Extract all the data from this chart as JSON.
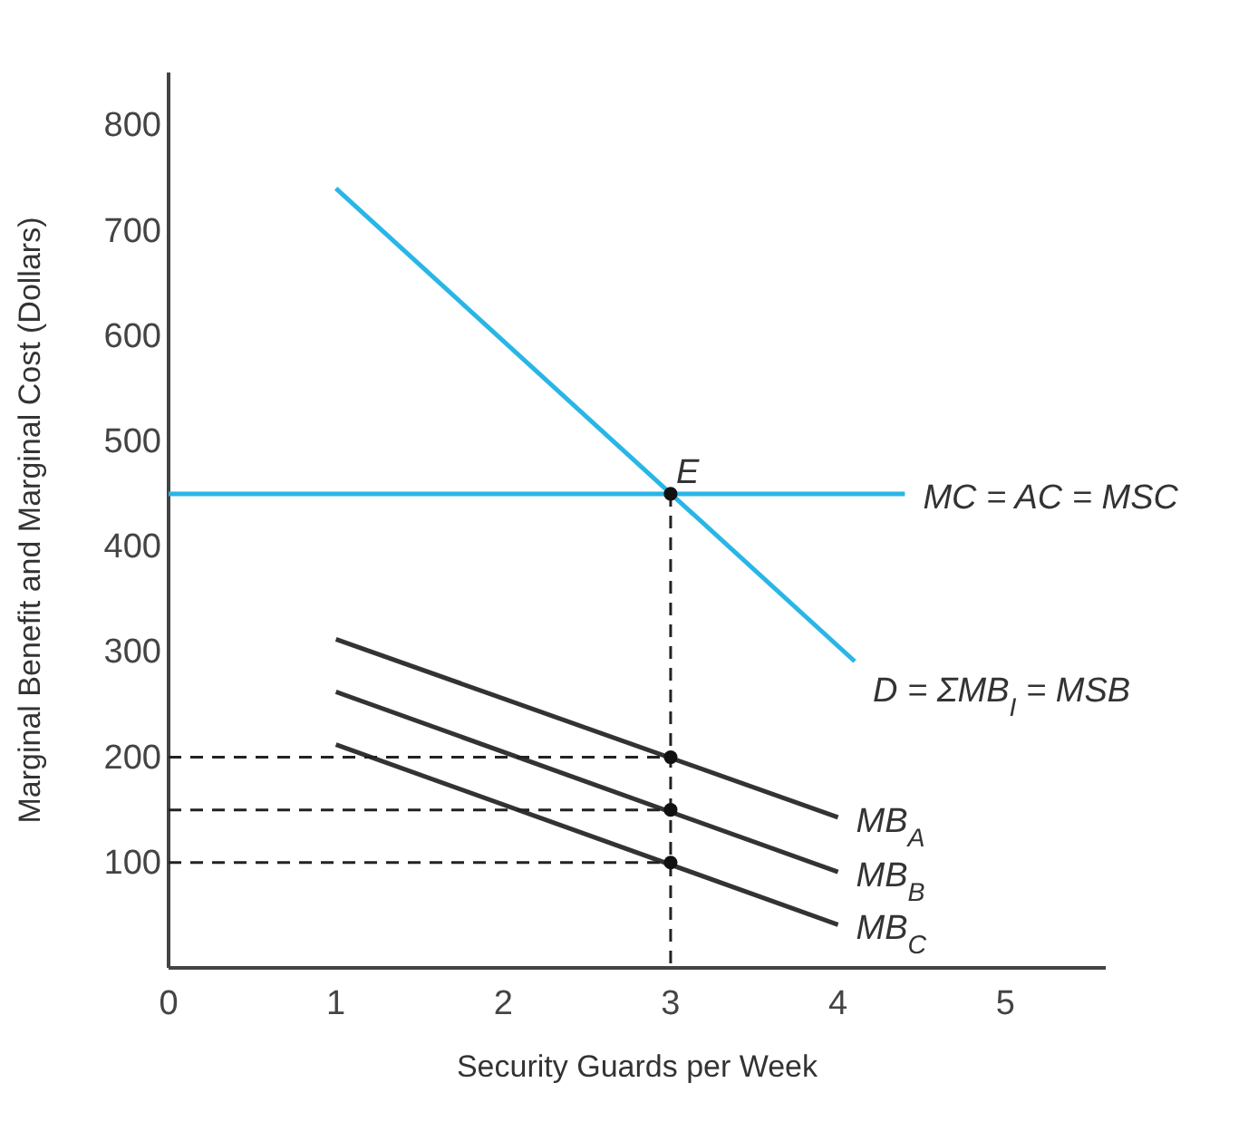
{
  "chart_data": {
    "type": "line",
    "xlabel": "Security Guards per Week",
    "ylabel": "Marginal Benefit and Marginal Cost (Dollars)",
    "xlim": [
      0,
      5.6
    ],
    "ylim": [
      0,
      850
    ],
    "xticks": [
      0,
      1,
      2,
      3,
      4,
      5
    ],
    "yticks": [
      100,
      200,
      300,
      400,
      500,
      600,
      700,
      800
    ],
    "grid": false,
    "legend": false,
    "series": [
      {
        "name": "MC = AC = MSC",
        "color": "#29b6e6",
        "x": [
          0,
          4.4
        ],
        "values": [
          450,
          450
        ]
      },
      {
        "name": "D = ΣMB$_{I}$ = MSB",
        "color": "#29b6e6",
        "x": [
          1,
          4.1
        ],
        "values": [
          740,
          291
        ]
      },
      {
        "name": "MB$_{A}$",
        "color": "#333333",
        "x": [
          1,
          4
        ],
        "values": [
          312,
          143
        ]
      },
      {
        "name": "MB$_{B}$",
        "color": "#333333",
        "x": [
          1,
          4
        ],
        "values": [
          262,
          91
        ]
      },
      {
        "name": "MB$_{C}$",
        "color": "#333333",
        "x": [
          1,
          4
        ],
        "values": [
          212,
          41
        ]
      },
      {
        "color": "#222222",
        "line_style": "dashed",
        "x": [
          0,
          3
        ],
        "values": [
          200,
          200
        ]
      },
      {
        "color": "#222222",
        "line_style": "dashed",
        "x": [
          0,
          3
        ],
        "values": [
          150,
          150
        ]
      },
      {
        "color": "#222222",
        "line_style": "dashed",
        "x": [
          0,
          3
        ],
        "values": [
          100,
          100
        ]
      },
      {
        "color": "#222222",
        "line_style": "dashed",
        "x": [
          3,
          3
        ],
        "values": [
          450,
          0
        ]
      },
      {
        "type": "scatter",
        "marker": "circle",
        "color": "#111111",
        "x": [
          3,
          3,
          3,
          3
        ],
        "values": [
          450,
          200,
          150,
          100
        ]
      }
    ],
    "annotations": [
      {
        "text": "E",
        "x": 3,
        "y": 450
      }
    ]
  }
}
